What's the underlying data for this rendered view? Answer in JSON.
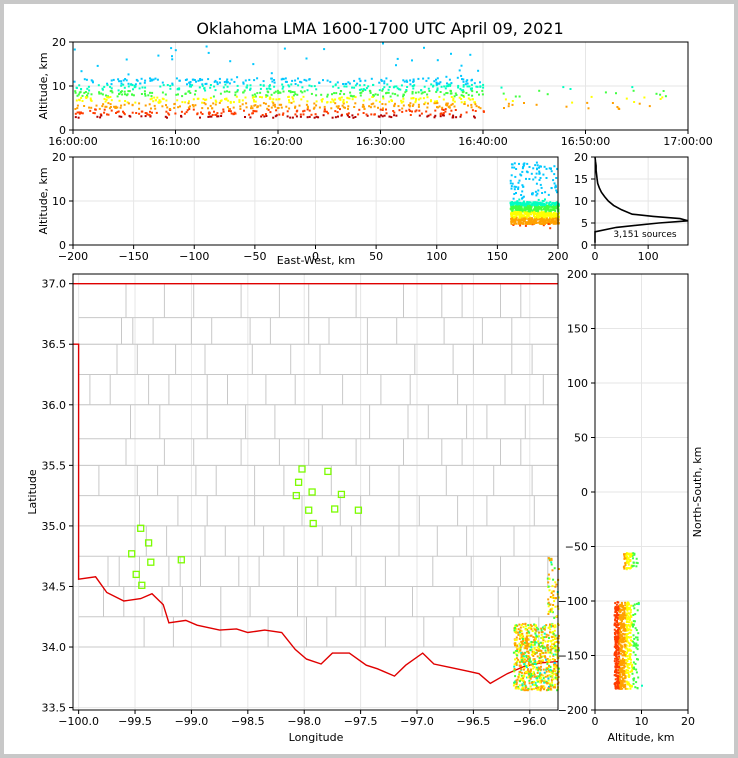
{
  "chart_data": {
    "title": "Oklahoma LMA 1600-1700 UTC April 09, 2021",
    "colors": {
      "source_scale": [
        "#00c8ff",
        "#00ffc0",
        "#40ff40",
        "#ffff00",
        "#ffa000",
        "#ff3c00",
        "#b40000",
        "#000000"
      ],
      "state_border": "#e00000",
      "county_lines": "#c8c8c8",
      "stations": "#7cfc00"
    },
    "panels": [
      {
        "id": "time-altitude",
        "type": "heatmap",
        "ylabel": "Altitude, km",
        "xlabel": "",
        "ylim": [
          0,
          20
        ],
        "yticks": [
          "0",
          "10",
          "20"
        ],
        "xlim": [
          "16:00:00",
          "17:00:00"
        ],
        "xticks": [
          "16:00:00",
          "16:10:00",
          "16:20:00",
          "16:30:00",
          "16:40:00",
          "16:50:00",
          "17:00:00"
        ],
        "activity": [
          {
            "start_min": 0,
            "end_min": 40,
            "alt_range_km": [
              3,
              12
            ],
            "density": "high"
          },
          {
            "start_min": 40,
            "end_min": 58,
            "alt_range_km": [
              5,
              10
            ],
            "density": "low"
          }
        ]
      },
      {
        "id": "east-west-altitude",
        "type": "heatmap",
        "xlabel": "East-West, km",
        "ylabel": "Altitude, km",
        "xlim": [
          -200,
          200
        ],
        "ylim": [
          0,
          20
        ],
        "xticks": [
          "−200",
          "−150",
          "−100",
          "−50",
          "0",
          "50",
          "100",
          "150",
          "200"
        ],
        "yticks": [
          "0",
          "10",
          "20"
        ],
        "activity": [
          {
            "x_range_km": [
              160,
              200
            ],
            "alt_range_km": [
              4,
              19
            ],
            "core_alt_km": [
              5,
              10
            ]
          }
        ]
      },
      {
        "id": "altitude-histogram",
        "type": "line",
        "ylim": [
          0,
          20
        ],
        "yticks": [
          "0",
          "5",
          "10",
          "15",
          "20"
        ],
        "xticks": [
          "0",
          "100"
        ],
        "annotation": "3,151 sources",
        "series": [
          {
            "altitude_km": [
              0.5,
              3,
              4,
              5,
              5.5,
              6,
              6.5,
              7,
              8,
              9,
              10,
              11,
              12,
              13,
              14,
              15,
              16,
              17,
              18,
              19,
              20
            ],
            "count": [
              0,
              0,
              40,
              120,
              175,
              160,
              110,
              70,
              50,
              35,
              25,
              18,
              12,
              8,
              5,
              4,
              3,
              2,
              2,
              1,
              0
            ]
          }
        ]
      },
      {
        "id": "plan-view",
        "type": "scatter",
        "xlabel": "Longitude",
        "ylabel": "Latitude",
        "xlim": [
          -100.05,
          -95.75
        ],
        "ylim": [
          33.48,
          37.08
        ],
        "xticks": [
          "−100.0",
          "−99.5",
          "−99.0",
          "−98.5",
          "−98.0",
          "−97.5",
          "−97.0",
          "−96.5",
          "−96.0"
        ],
        "yticks": [
          "33.5",
          "34.0",
          "34.5",
          "35.0",
          "35.5",
          "36.0",
          "36.5",
          "37.0"
        ],
        "stations": [
          {
            "lon": -99.45,
            "lat": 34.98
          },
          {
            "lon": -99.38,
            "lat": 34.86
          },
          {
            "lon": -99.53,
            "lat": 34.77
          },
          {
            "lon": -99.36,
            "lat": 34.7
          },
          {
            "lon": -99.09,
            "lat": 34.72
          },
          {
            "lon": -99.49,
            "lat": 34.6
          },
          {
            "lon": -99.44,
            "lat": 34.51
          },
          {
            "lon": -98.02,
            "lat": 35.47
          },
          {
            "lon": -97.79,
            "lat": 35.45
          },
          {
            "lon": -98.05,
            "lat": 35.36
          },
          {
            "lon": -97.93,
            "lat": 35.28
          },
          {
            "lon": -98.07,
            "lat": 35.25
          },
          {
            "lon": -97.67,
            "lat": 35.26
          },
          {
            "lon": -97.96,
            "lat": 35.13
          },
          {
            "lon": -97.73,
            "lat": 35.14
          },
          {
            "lon": -97.52,
            "lat": 35.13
          },
          {
            "lon": -97.92,
            "lat": 35.02
          }
        ],
        "source_clusters": [
          {
            "lon_range": [
              -96.15,
              -95.75
            ],
            "lat_range": [
              33.65,
              34.2
            ],
            "density": "high"
          },
          {
            "lon_range": [
              -95.85,
              -95.75
            ],
            "lat_range": [
              34.2,
              34.75
            ],
            "density": "low"
          }
        ]
      },
      {
        "id": "altitude-north-south",
        "type": "heatmap",
        "xlabel": "Altitude, km",
        "ylabel": "North-South, km",
        "xlim": [
          0,
          20
        ],
        "ylim": [
          -200,
          200
        ],
        "xticks": [
          "0",
          "10",
          "20"
        ],
        "yticks": [
          "200",
          "150",
          "100",
          "50",
          "0",
          "−50",
          "−100",
          "−150",
          "−200"
        ],
        "activity": [
          {
            "ns_range_km": [
              -70,
              -55
            ],
            "alt_range_km": [
              6,
              12
            ]
          },
          {
            "ns_range_km": [
              -180,
              -100
            ],
            "alt_range_km": [
              4,
              15
            ]
          }
        ]
      }
    ]
  }
}
